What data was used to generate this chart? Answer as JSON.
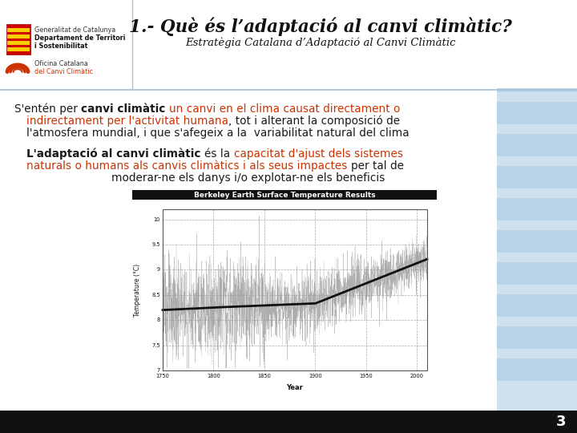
{
  "bg_color": "#cfe0ee",
  "white_bg": "#ffffff",
  "title": "1.- Què és l’adaptació al canvi climàtic?",
  "subtitle": "Estratègia Catalana d’Adaptació al Canvi Climàtic",
  "header_sep_color": "#aabfcf",
  "stripe_color": "#b8d4e8",
  "footer_color": "#222222",
  "page_number": "3",
  "text_black": "#1a1a1a",
  "text_red": "#cc3300",
  "chart_title": "Berkeley Earth Surface Temperature Results",
  "chart_ylabel": "Temperature (°C)",
  "chart_xlabel": "Year",
  "year_ticks": [
    1750,
    1800,
    1850,
    1900,
    1950,
    2000
  ],
  "temp_ticks": [
    7,
    7.5,
    8,
    8.5,
    9,
    9.5,
    10
  ],
  "year_min": 1750,
  "year_max": 2010,
  "temp_min": 7.0,
  "temp_max": 10.2
}
